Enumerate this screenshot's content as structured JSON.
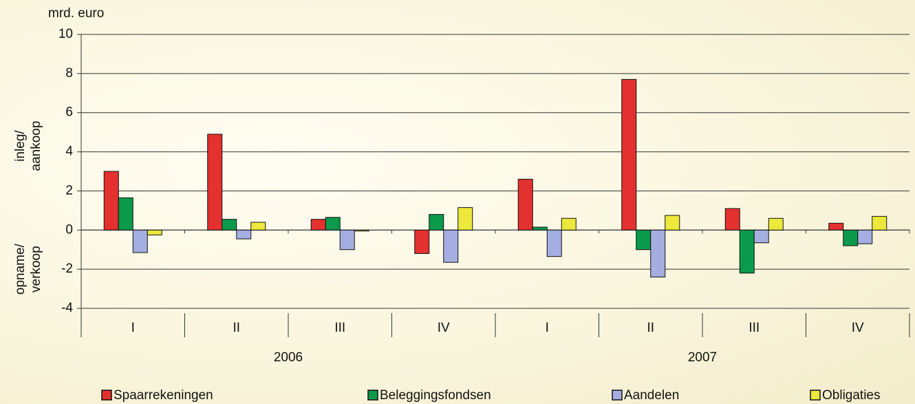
{
  "chart_data": {
    "type": "bar",
    "y_label": "mrd. euro",
    "y_annotations": [
      [
        "inleg/",
        "aankoop"
      ],
      [
        "opname/",
        "verkoop"
      ]
    ],
    "categories": [
      "I",
      "II",
      "III",
      "IV",
      "I",
      "II",
      "III",
      "IV"
    ],
    "x_groups": [
      "2006",
      "2007"
    ],
    "series": [
      {
        "name": "Spaarrekeningen",
        "color": "#e3312f",
        "values": [
          3.0,
          4.9,
          0.55,
          -1.2,
          2.6,
          7.7,
          1.1,
          0.35
        ]
      },
      {
        "name": "Beleggingsfondsen",
        "color": "#0b9a4c",
        "values": [
          1.65,
          0.55,
          0.65,
          0.8,
          0.15,
          -1.0,
          -2.2,
          -0.8
        ]
      },
      {
        "name": "Aandelen",
        "color": "#a5aee0",
        "values": [
          -1.15,
          -0.45,
          -1.0,
          -1.65,
          -1.35,
          -2.4,
          -0.65,
          -0.7
        ]
      },
      {
        "name": "Obligaties",
        "color": "#ece83c",
        "values": [
          -0.25,
          0.4,
          -0.05,
          1.15,
          0.6,
          0.75,
          0.6,
          0.7
        ]
      }
    ],
    "ylim": [
      -4,
      10
    ],
    "yticks": [
      10,
      8,
      6,
      4,
      2,
      0,
      -2,
      -4
    ],
    "grid": true,
    "legend": "bottom"
  }
}
